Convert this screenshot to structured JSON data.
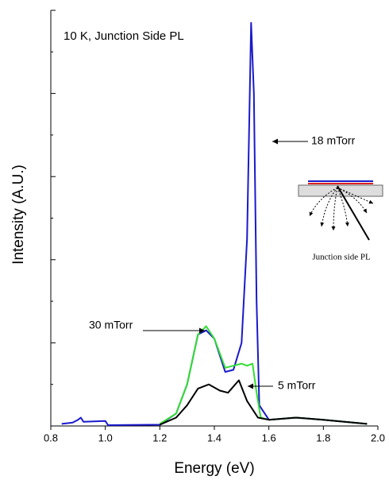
{
  "chart_data": {
    "type": "line",
    "title": "10 K, Junction Side PL",
    "x_label": "Energy (eV)",
    "y_label": "Intensity (A.U.)",
    "xlim": [
      0.8,
      2.0
    ],
    "xticks": [
      0.8,
      {
        "value": 1,
        "label": "1.0"
      },
      1.2,
      1.4,
      1.6,
      1.8,
      {
        "value": 2,
        "label": "2.0"
      }
    ],
    "ylim": [
      0,
      10
    ],
    "yticks": [
      0,
      1,
      2,
      3,
      4,
      5,
      6,
      7,
      8,
      9,
      10
    ],
    "ytick_labels": false,
    "series": [
      {
        "name": "18 mTorr",
        "color": "#1a1acc",
        "x": [
          0.84,
          0.88,
          0.9,
          0.91,
          0.92,
          1.0,
          1.01,
          1.2,
          1.26,
          1.3,
          1.34,
          1.37,
          1.4,
          1.44,
          1.47,
          1.5,
          1.52,
          1.535,
          1.545,
          1.555,
          1.565,
          1.6,
          1.7,
          1.8,
          1.96
        ],
        "values": [
          0.05,
          0.08,
          0.15,
          0.2,
          0.1,
          0.12,
          0.02,
          0.03,
          0.3,
          1.0,
          2.2,
          2.3,
          2.1,
          1.3,
          1.35,
          2.0,
          4.5,
          9.7,
          8.0,
          3.0,
          0.5,
          0.15,
          0.2,
          0.15,
          0.05
        ]
      },
      {
        "name": "30 mTorr",
        "color": "#33dd33",
        "x": [
          1.2,
          1.26,
          1.3,
          1.34,
          1.37,
          1.4,
          1.44,
          1.47,
          1.5,
          1.52,
          1.54,
          1.555,
          1.57,
          1.6,
          1.7,
          1.8,
          1.96
        ],
        "values": [
          0.05,
          0.3,
          1.0,
          2.2,
          2.4,
          2.1,
          1.4,
          1.45,
          1.5,
          1.45,
          1.5,
          0.8,
          0.2,
          0.15,
          0.2,
          0.15,
          0.05
        ]
      },
      {
        "name": "5 mTorr",
        "color": "#000000",
        "x": [
          1.2,
          1.26,
          1.3,
          1.34,
          1.38,
          1.42,
          1.45,
          1.49,
          1.52,
          1.545,
          1.56,
          1.6,
          1.7,
          1.8,
          1.96
        ],
        "values": [
          0.03,
          0.2,
          0.5,
          0.9,
          1.0,
          0.85,
          0.8,
          1.1,
          0.6,
          0.35,
          0.2,
          0.15,
          0.2,
          0.15,
          0.05
        ]
      }
    ],
    "inset_label": "Junction side PL"
  }
}
